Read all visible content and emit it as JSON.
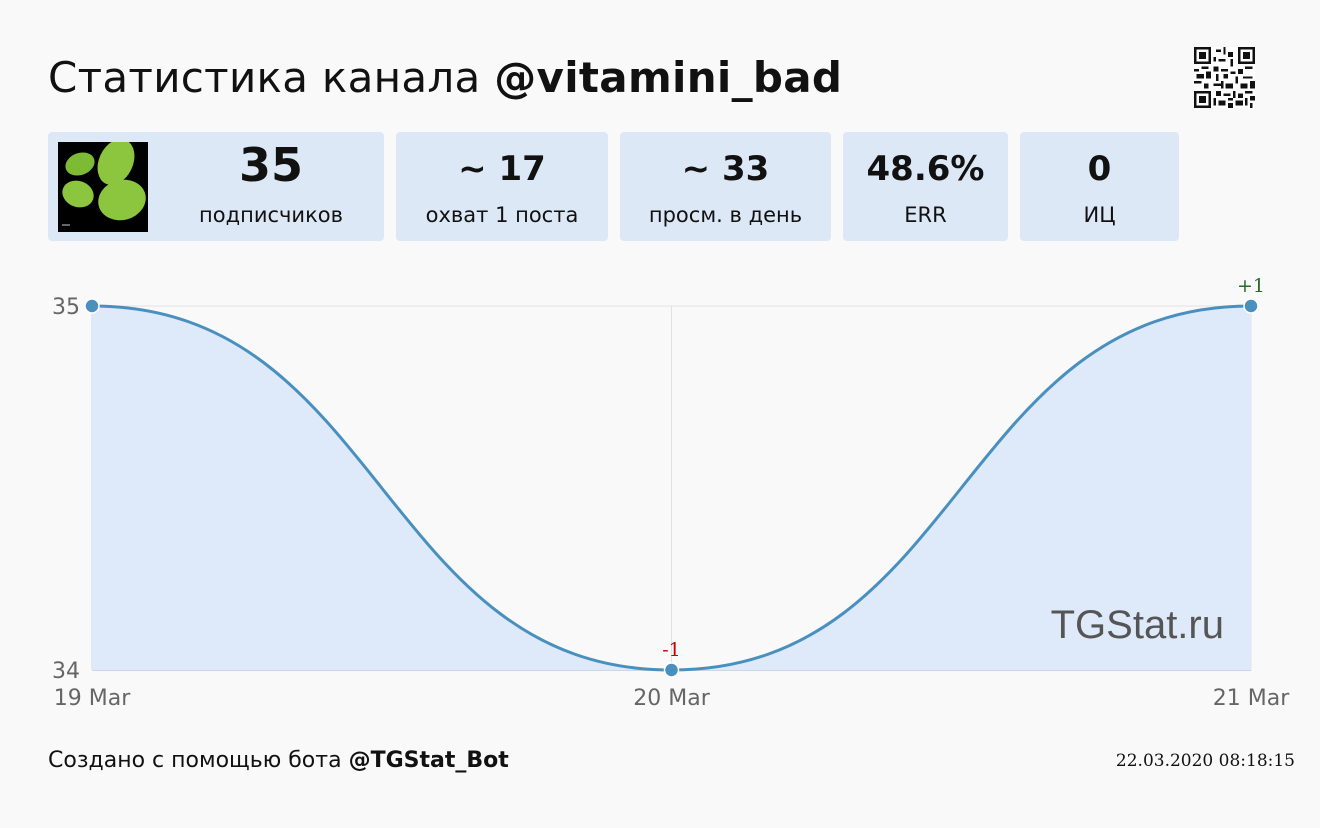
{
  "header": {
    "title_prefix": "Статистика канала",
    "channel_handle": "@vitamini_bad",
    "qr_icon": "qr-code-icon"
  },
  "stats": [
    {
      "value": "35",
      "label": "подписчиков"
    },
    {
      "value": "~ 17",
      "label": "охват 1 поста"
    },
    {
      "value": "~ 33",
      "label": "просм. в день"
    },
    {
      "value": "48.6%",
      "label": "ERR"
    },
    {
      "value": "0",
      "label": "ИЦ"
    }
  ],
  "colors": {
    "card_bg": "#dde8f7",
    "line": "#4a90bf",
    "area": "#deeaf9",
    "positive": "#2a6a2a",
    "negative": "#cc0000"
  },
  "chart_data": {
    "type": "area",
    "x": [
      "19 Mar",
      "20 Mar",
      "21 Mar"
    ],
    "values": [
      35,
      34,
      35
    ],
    "deltas": [
      "",
      "-1",
      "+1"
    ],
    "y_ticks": [
      "35",
      "34"
    ],
    "ylim": [
      34,
      35
    ],
    "watermark": "TGStat.ru",
    "grid": "vertical"
  },
  "footer": {
    "prefix": "Создано с помощью бота",
    "bot_handle": "@TGStat_Bot",
    "timestamp": "22.03.2020 08:18:15"
  }
}
